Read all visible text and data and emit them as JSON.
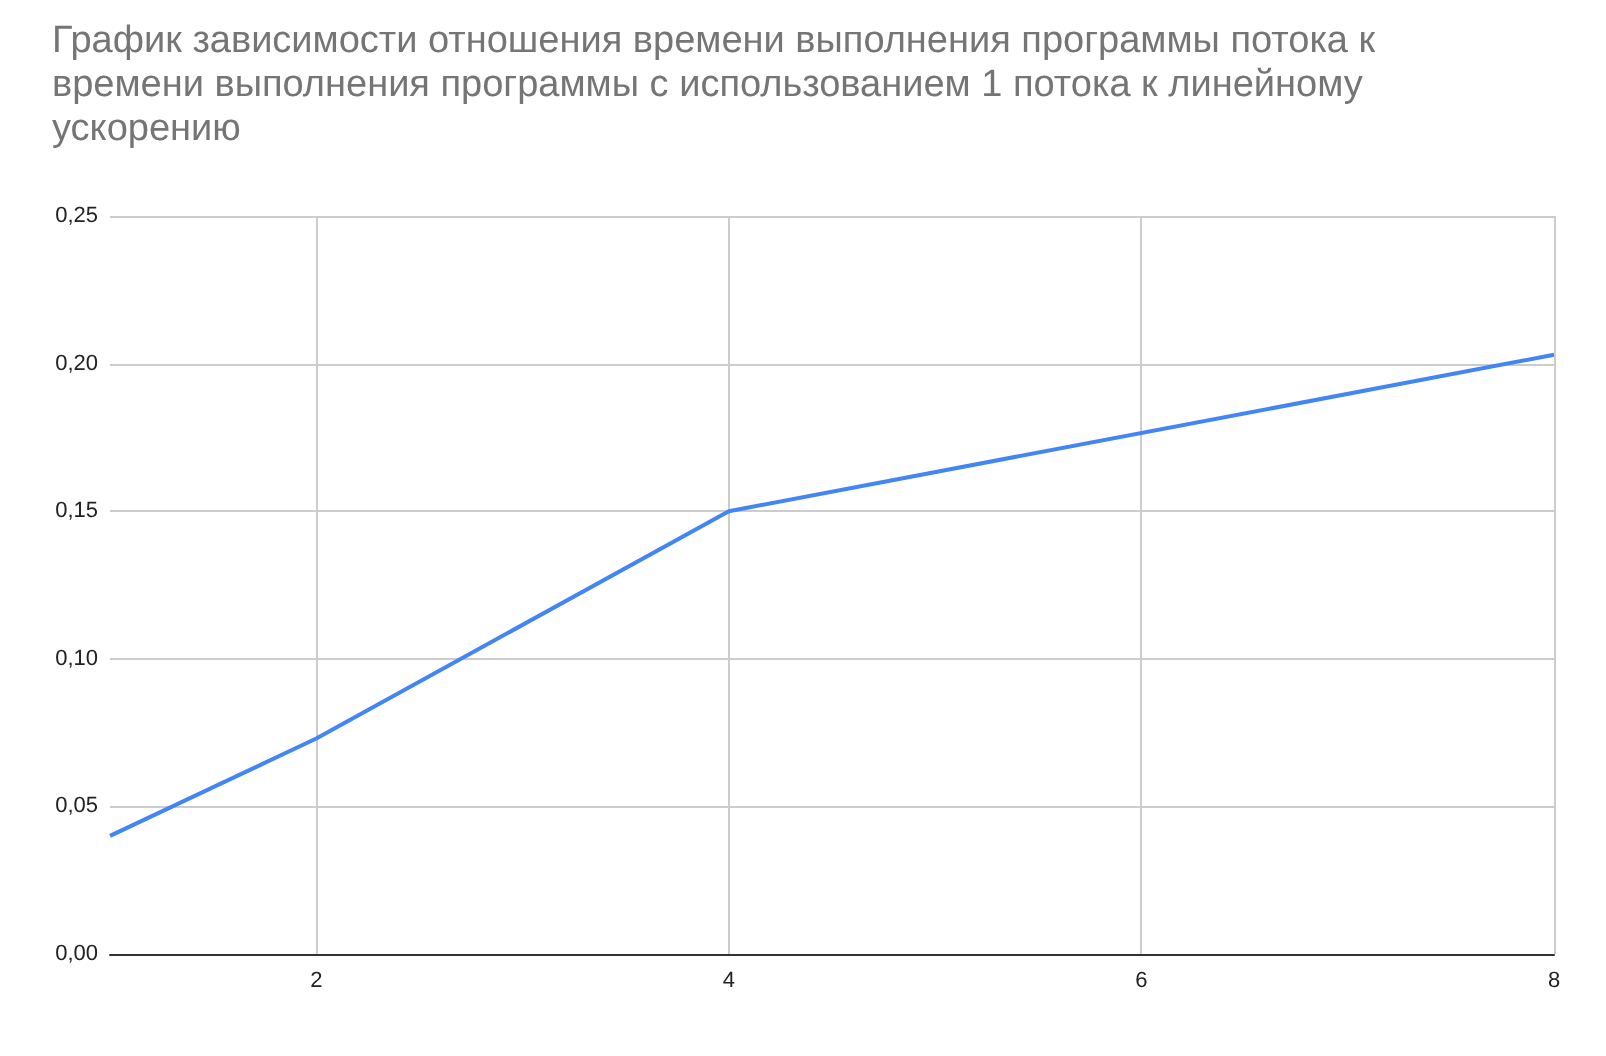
{
  "chart_data": {
    "type": "line",
    "title": "График зависимости отношения времени выполнения программы потока к времени выполнения программы с использованием 1 потока к линейному ускорению",
    "x": [
      1,
      2,
      4,
      8
    ],
    "series": [
      {
        "color": "#4285f4",
        "values": [
          0.04,
          0.073,
          0.15,
          0.203
        ]
      }
    ],
    "xlim": [
      1,
      8
    ],
    "xticks": [
      2,
      4,
      6,
      8
    ],
    "ylim": [
      0,
      0.25
    ],
    "yticks": [
      {
        "value": 0,
        "label": "0,00"
      },
      {
        "value": 0.05,
        "label": "0,05"
      },
      {
        "value": 0.1,
        "label": "0,10"
      },
      {
        "value": 0.15,
        "label": "0,15"
      },
      {
        "value": 0.2,
        "label": "0,20"
      },
      {
        "value": 0.25,
        "label": "0,25"
      }
    ],
    "grid": true,
    "marker": "none",
    "line_style": "solid"
  }
}
